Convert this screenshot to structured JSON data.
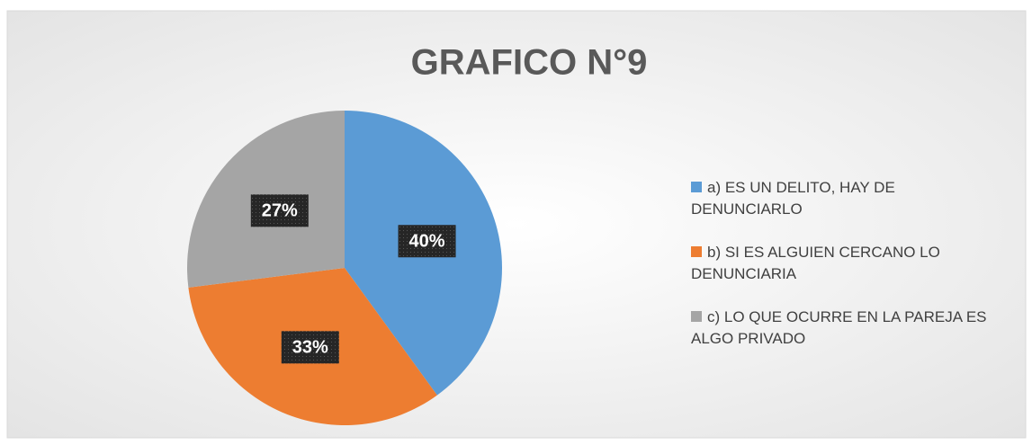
{
  "chart_data": {
    "type": "pie",
    "title": "GRAFICO N°9",
    "categories": [
      "a) ES UN DELITO, HAY DE DENUNCIARLO",
      "b) SI ES ALGUIEN CERCANO LO DENUNCIARIA",
      "c) LO QUE OCURRE EN LA PAREJA ES ALGO PRIVADO"
    ],
    "values": [
      40,
      33,
      27
    ],
    "value_labels": [
      "40%",
      "33%",
      "27%"
    ],
    "colors": [
      "#5b9bd5",
      "#ed7d31",
      "#a5a5a5"
    ],
    "legend": "right"
  }
}
